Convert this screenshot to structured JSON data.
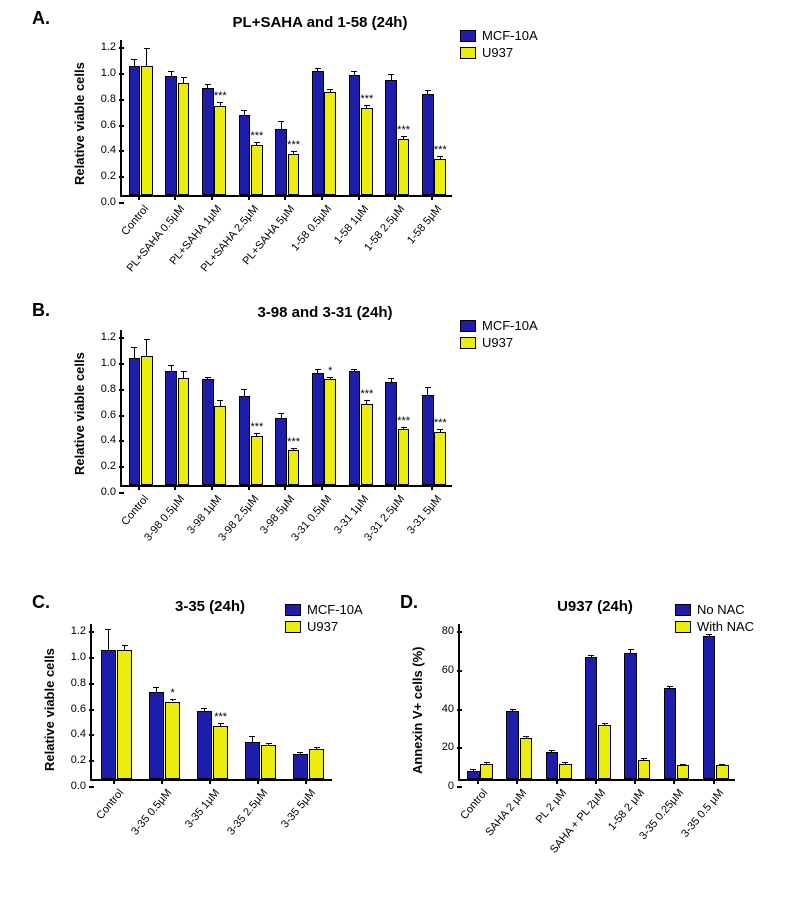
{
  "colors": {
    "series1": "#1d1da9",
    "series2": "#eced09",
    "axis": "#000000",
    "background": "#ffffff"
  },
  "panelLabels": {
    "A": "A.",
    "B": "B.",
    "C": "C.",
    "D": "D."
  },
  "panelA": {
    "title": "PL+SAHA and 1-58 (24h)",
    "title_fontsize": 15,
    "ylabel": "Relative viable cells",
    "ymin": 0,
    "ymax": 1.2,
    "ystep": 0.2,
    "legend": [
      "MCF-10A",
      "U937"
    ],
    "categories": [
      "Control",
      "PL+SAHA 0.5µM",
      "PL+SAHA 1µM",
      "PL+SAHA 2.5µM",
      "PL+SAHA 5µM",
      "1-58 0.5µM",
      "1-58 1µM",
      "1-58 2.5µM",
      "1-58 5µM"
    ],
    "s1": [
      1.0,
      0.92,
      0.83,
      0.62,
      0.51,
      0.96,
      0.93,
      0.89,
      0.78
    ],
    "s1e": [
      0.05,
      0.04,
      0.03,
      0.04,
      0.06,
      0.02,
      0.03,
      0.05,
      0.03
    ],
    "s2": [
      1.0,
      0.87,
      0.69,
      0.39,
      0.32,
      0.8,
      0.67,
      0.43,
      0.28
    ],
    "s2e": [
      0.14,
      0.04,
      0.03,
      0.02,
      0.02,
      0.02,
      0.03,
      0.03,
      0.02
    ],
    "sig": [
      "",
      "",
      "***",
      "***",
      "***",
      "",
      "***",
      "***",
      "***"
    ]
  },
  "panelB": {
    "title": "3-98 and 3-31 (24h)",
    "title_fontsize": 15,
    "ylabel": "Relative viable cells",
    "ymin": 0,
    "ymax": 1.2,
    "ystep": 0.2,
    "legend": [
      "MCF-10A",
      "U937"
    ],
    "categories": [
      "Control",
      "3-98 0.5µM",
      "3-98 1µM",
      "3-98 2.5µM",
      "3-98 5µM",
      "3-31 0.5µM",
      "3-31 1µM",
      "3-31 2.5µM",
      "3-31 5µM"
    ],
    "s1": [
      0.98,
      0.88,
      0.82,
      0.69,
      0.52,
      0.87,
      0.88,
      0.8,
      0.7
    ],
    "s1e": [
      0.09,
      0.05,
      0.02,
      0.05,
      0.04,
      0.03,
      0.02,
      0.03,
      0.06
    ],
    "s2": [
      1.0,
      0.83,
      0.61,
      0.38,
      0.27,
      0.82,
      0.63,
      0.43,
      0.41
    ],
    "s2e": [
      0.13,
      0.05,
      0.05,
      0.02,
      0.02,
      0.02,
      0.03,
      0.02,
      0.02
    ],
    "sig": [
      "",
      "",
      "",
      "***",
      "***",
      "*",
      "***",
      "***",
      "***"
    ]
  },
  "panelC": {
    "title": "3-35 (24h)",
    "title_fontsize": 15,
    "ylabel": "Relative viable cells",
    "ymin": 0,
    "ymax": 1.2,
    "ystep": 0.2,
    "legend": [
      "MCF-10A",
      "U937"
    ],
    "categories": [
      "Control",
      "3-35 0.5µM",
      "3-35 1µM",
      "3-35 2.5µM",
      "3-35 5µM"
    ],
    "s1": [
      1.0,
      0.67,
      0.53,
      0.29,
      0.19
    ],
    "s1e": [
      0.16,
      0.04,
      0.02,
      0.04,
      0.02
    ],
    "s2": [
      1.0,
      0.6,
      0.41,
      0.26,
      0.23
    ],
    "s2e": [
      0.04,
      0.02,
      0.02,
      0.02,
      0.02
    ],
    "sig": [
      "",
      "*",
      "***",
      "",
      ""
    ]
  },
  "panelD": {
    "title": "U937 (24h)",
    "title_fontsize": 15,
    "ylabel": "Annexin V+ cells (%)",
    "ymin": 0,
    "ymax": 80,
    "ystep": 20,
    "legend": [
      "No NAC",
      "With NAC"
    ],
    "categories": [
      "Control",
      "SAHA 2 µM",
      "PL 2 µM",
      "SAHA + PL 2µM",
      "1-58 2 µM",
      "3-35 0.25µM",
      "3-35 0.5 µM"
    ],
    "s1": [
      4,
      35,
      14,
      63,
      65,
      47,
      74
    ],
    "s1e": [
      1,
      1,
      1,
      1,
      2,
      1,
      1
    ],
    "s2": [
      8,
      21,
      8,
      28,
      10,
      7,
      7
    ],
    "s2e": [
      1,
      1,
      1,
      1,
      1,
      1,
      1
    ],
    "sig": [
      "",
      "",
      "",
      "",
      "",
      "",
      ""
    ]
  }
}
